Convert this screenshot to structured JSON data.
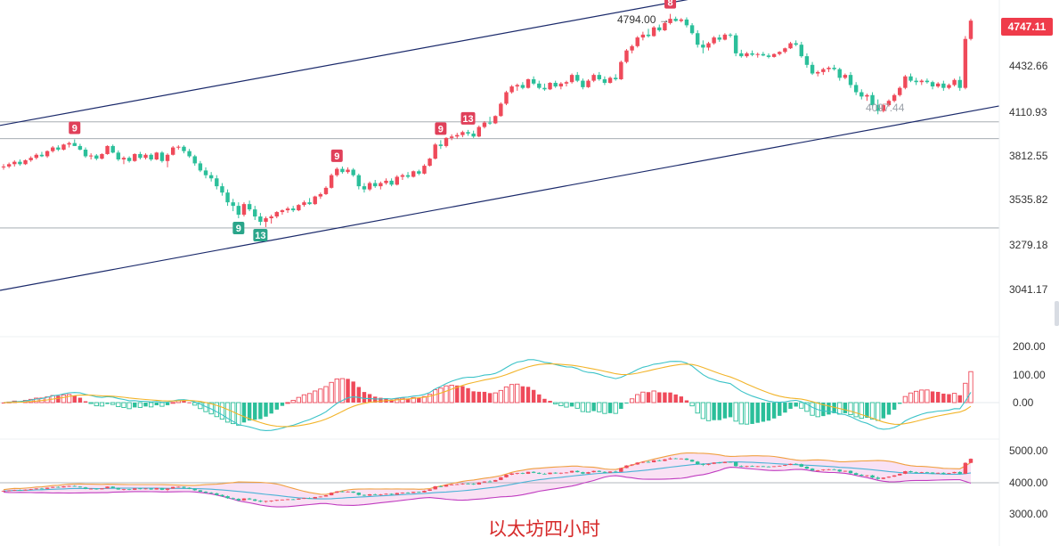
{
  "caption": "以太坊四小时",
  "current_price": "4747.11",
  "colors": {
    "up": "#ef4a5a",
    "down": "#2bbf9a",
    "channel": "#1b2a6b",
    "dif": "#3cc3c8",
    "dea": "#f2b42a",
    "ma_upper": "#f0a040",
    "ma_mid": "#4ab3d6",
    "ma_lower": "#c03cc0",
    "band_fill": "#f6d4f0"
  },
  "chart_data": [
    {
      "type": "candlestick",
      "title": "",
      "y_ticks": [
        "4432.66",
        "4110.93",
        "3812.55",
        "3535.82",
        "3279.18",
        "3041.17"
      ],
      "ylim": [
        2900,
        4900
      ],
      "annotations": {
        "high_label": "4794.00",
        "low_label": "4097.44",
        "td_markers": [
          {
            "text": "9",
            "bar": 13,
            "kind": "up"
          },
          {
            "text": "9",
            "bar": 43,
            "kind": "down"
          },
          {
            "text": "13",
            "bar": 47,
            "kind": "down"
          },
          {
            "text": "9",
            "bar": 61,
            "kind": "up"
          },
          {
            "text": "9",
            "bar": 80,
            "kind": "up"
          },
          {
            "text": "13",
            "bar": 85,
            "kind": "up"
          },
          {
            "text": "8",
            "bar": 122,
            "kind": "up"
          }
        ]
      },
      "horizontal_levels": [
        4045,
        3930,
        3375
      ],
      "channel": {
        "upper": [
          [
            0,
            4025
          ],
          [
            131,
            4934
          ]
        ],
        "lower": [
          [
            0,
            3040
          ],
          [
            187,
            4188
          ]
        ]
      },
      "ohlc": [
        [
          3740,
          3760,
          3725,
          3745
        ],
        [
          3745,
          3770,
          3735,
          3760
        ],
        [
          3760,
          3785,
          3745,
          3775
        ],
        [
          3775,
          3790,
          3750,
          3760
        ],
        [
          3760,
          3790,
          3755,
          3785
        ],
        [
          3785,
          3810,
          3775,
          3800
        ],
        [
          3800,
          3830,
          3790,
          3820
        ],
        [
          3820,
          3840,
          3805,
          3810
        ],
        [
          3810,
          3850,
          3800,
          3845
        ],
        [
          3845,
          3880,
          3835,
          3870
        ],
        [
          3870,
          3885,
          3845,
          3855
        ],
        [
          3855,
          3895,
          3850,
          3890
        ],
        [
          3890,
          3910,
          3870,
          3900
        ],
        [
          3900,
          3925,
          3880,
          3880
        ],
        [
          3880,
          3895,
          3850,
          3855
        ],
        [
          3855,
          3870,
          3800,
          3810
        ],
        [
          3810,
          3830,
          3790,
          3815
        ],
        [
          3815,
          3825,
          3785,
          3795
        ],
        [
          3795,
          3830,
          3790,
          3825
        ],
        [
          3825,
          3885,
          3820,
          3880
        ],
        [
          3880,
          3890,
          3830,
          3835
        ],
        [
          3835,
          3850,
          3780,
          3790
        ],
        [
          3790,
          3810,
          3760,
          3800
        ],
        [
          3800,
          3810,
          3770,
          3780
        ],
        [
          3780,
          3830,
          3775,
          3825
        ],
        [
          3825,
          3840,
          3790,
          3800
        ],
        [
          3800,
          3830,
          3790,
          3820
        ],
        [
          3820,
          3830,
          3780,
          3790
        ],
        [
          3790,
          3840,
          3785,
          3835
        ],
        [
          3835,
          3845,
          3770,
          3780
        ],
        [
          3780,
          3830,
          3740,
          3820
        ],
        [
          3820,
          3880,
          3815,
          3870
        ],
        [
          3870,
          3885,
          3855,
          3875
        ],
        [
          3875,
          3885,
          3830,
          3845
        ],
        [
          3845,
          3860,
          3800,
          3810
        ],
        [
          3810,
          3820,
          3750,
          3765
        ],
        [
          3765,
          3780,
          3710,
          3720
        ],
        [
          3720,
          3740,
          3670,
          3690
        ],
        [
          3690,
          3710,
          3650,
          3670
        ],
        [
          3670,
          3690,
          3600,
          3620
        ],
        [
          3620,
          3640,
          3560,
          3580
        ],
        [
          3580,
          3600,
          3500,
          3520
        ],
        [
          3520,
          3540,
          3470,
          3500
        ],
        [
          3500,
          3520,
          3430,
          3450
        ],
        [
          3450,
          3520,
          3440,
          3510
        ],
        [
          3510,
          3530,
          3470,
          3480
        ],
        [
          3480,
          3500,
          3420,
          3440
        ],
        [
          3440,
          3460,
          3390,
          3410
        ],
        [
          3410,
          3440,
          3380,
          3430
        ],
        [
          3430,
          3450,
          3400,
          3440
        ],
        [
          3440,
          3470,
          3430,
          3465
        ],
        [
          3465,
          3480,
          3450,
          3475
        ],
        [
          3475,
          3495,
          3460,
          3485
        ],
        [
          3485,
          3500,
          3465,
          3475
        ],
        [
          3475,
          3510,
          3470,
          3505
        ],
        [
          3505,
          3530,
          3495,
          3520
        ],
        [
          3520,
          3545,
          3505,
          3510
        ],
        [
          3510,
          3560,
          3505,
          3555
        ],
        [
          3555,
          3580,
          3540,
          3570
        ],
        [
          3570,
          3620,
          3565,
          3610
        ],
        [
          3610,
          3700,
          3605,
          3690
        ],
        [
          3690,
          3740,
          3680,
          3730
        ],
        [
          3730,
          3745,
          3700,
          3710
        ],
        [
          3710,
          3740,
          3700,
          3725
        ],
        [
          3725,
          3735,
          3680,
          3690
        ],
        [
          3690,
          3700,
          3600,
          3620
        ],
        [
          3620,
          3640,
          3580,
          3600
        ],
        [
          3600,
          3650,
          3590,
          3640
        ],
        [
          3640,
          3660,
          3610,
          3620
        ],
        [
          3620,
          3650,
          3600,
          3640
        ],
        [
          3640,
          3670,
          3630,
          3655
        ],
        [
          3655,
          3670,
          3620,
          3630
        ],
        [
          3630,
          3690,
          3625,
          3680
        ],
        [
          3680,
          3700,
          3660,
          3690
        ],
        [
          3690,
          3710,
          3670,
          3680
        ],
        [
          3680,
          3720,
          3675,
          3715
        ],
        [
          3715,
          3725,
          3690,
          3700
        ],
        [
          3700,
          3760,
          3695,
          3750
        ],
        [
          3750,
          3800,
          3745,
          3795
        ],
        [
          3795,
          3900,
          3790,
          3890
        ],
        [
          3890,
          3920,
          3860,
          3880
        ],
        [
          3880,
          3940,
          3870,
          3935
        ],
        [
          3935,
          3960,
          3920,
          3945
        ],
        [
          3945,
          3970,
          3930,
          3955
        ],
        [
          3955,
          3985,
          3940,
          3975
        ],
        [
          3975,
          3990,
          3950,
          3965
        ],
        [
          3965,
          3985,
          3935,
          3945
        ],
        [
          3945,
          4020,
          3940,
          4010
        ],
        [
          4010,
          4050,
          4000,
          4040
        ],
        [
          4040,
          4080,
          4025,
          4035
        ],
        [
          4035,
          4090,
          4030,
          4085
        ],
        [
          4085,
          4180,
          4080,
          4170
        ],
        [
          4170,
          4260,
          4160,
          4250
        ],
        [
          4250,
          4300,
          4240,
          4290
        ],
        [
          4290,
          4310,
          4260,
          4300
        ],
        [
          4300,
          4320,
          4270,
          4280
        ],
        [
          4280,
          4345,
          4275,
          4340
        ],
        [
          4340,
          4360,
          4300,
          4310
        ],
        [
          4310,
          4330,
          4270,
          4280
        ],
        [
          4280,
          4310,
          4260,
          4270
        ],
        [
          4270,
          4320,
          4265,
          4315
        ],
        [
          4315,
          4330,
          4280,
          4290
        ],
        [
          4290,
          4320,
          4270,
          4310
        ],
        [
          4310,
          4330,
          4290,
          4320
        ],
        [
          4320,
          4380,
          4310,
          4370
        ],
        [
          4370,
          4390,
          4320,
          4330
        ],
        [
          4330,
          4345,
          4270,
          4285
        ],
        [
          4285,
          4340,
          4280,
          4330
        ],
        [
          4330,
          4380,
          4320,
          4370
        ],
        [
          4370,
          4390,
          4330,
          4340
        ],
        [
          4340,
          4360,
          4300,
          4315
        ],
        [
          4315,
          4360,
          4310,
          4350
        ],
        [
          4350,
          4375,
          4330,
          4340
        ],
        [
          4340,
          4470,
          4335,
          4460
        ],
        [
          4460,
          4550,
          4450,
          4540
        ],
        [
          4540,
          4580,
          4520,
          4570
        ],
        [
          4570,
          4640,
          4560,
          4630
        ],
        [
          4630,
          4670,
          4610,
          4650
        ],
        [
          4650,
          4690,
          4630,
          4640
        ],
        [
          4640,
          4710,
          4635,
          4700
        ],
        [
          4700,
          4720,
          4670,
          4680
        ],
        [
          4680,
          4740,
          4675,
          4730
        ],
        [
          4730,
          4794,
          4720,
          4760
        ],
        [
          4760,
          4775,
          4740,
          4745
        ],
        [
          4745,
          4765,
          4735,
          4755
        ],
        [
          4755,
          4770,
          4700,
          4715
        ],
        [
          4715,
          4730,
          4650,
          4660
        ],
        [
          4660,
          4680,
          4560,
          4580
        ],
        [
          4580,
          4610,
          4520,
          4560
        ],
        [
          4560,
          4600,
          4540,
          4590
        ],
        [
          4590,
          4640,
          4580,
          4630
        ],
        [
          4630,
          4650,
          4600,
          4615
        ],
        [
          4615,
          4660,
          4610,
          4650
        ],
        [
          4650,
          4660,
          4630,
          4645
        ],
        [
          4645,
          4660,
          4500,
          4520
        ],
        [
          4520,
          4545,
          4490,
          4500
        ],
        [
          4500,
          4530,
          4490,
          4520
        ],
        [
          4520,
          4540,
          4500,
          4510
        ],
        [
          4510,
          4525,
          4490,
          4515
        ],
        [
          4515,
          4530,
          4500,
          4505
        ],
        [
          4505,
          4520,
          4485,
          4495
        ],
        [
          4495,
          4520,
          4490,
          4515
        ],
        [
          4515,
          4535,
          4505,
          4530
        ],
        [
          4530,
          4560,
          4520,
          4555
        ],
        [
          4555,
          4600,
          4550,
          4590
        ],
        [
          4590,
          4610,
          4570,
          4580
        ],
        [
          4580,
          4600,
          4490,
          4500
        ],
        [
          4500,
          4520,
          4420,
          4440
        ],
        [
          4440,
          4460,
          4370,
          4380
        ],
        [
          4380,
          4400,
          4360,
          4390
        ],
        [
          4390,
          4420,
          4370,
          4410
        ],
        [
          4410,
          4430,
          4390,
          4420
        ],
        [
          4420,
          4440,
          4400,
          4410
        ],
        [
          4410,
          4420,
          4330,
          4350
        ],
        [
          4350,
          4380,
          4340,
          4370
        ],
        [
          4370,
          4390,
          4280,
          4300
        ],
        [
          4300,
          4320,
          4230,
          4250
        ],
        [
          4250,
          4270,
          4200,
          4220
        ],
        [
          4220,
          4240,
          4190,
          4230
        ],
        [
          4230,
          4250,
          4140,
          4160
        ],
        [
          4160,
          4200,
          4097,
          4120
        ],
        [
          4120,
          4170,
          4110,
          4160
        ],
        [
          4160,
          4200,
          4150,
          4190
        ],
        [
          4190,
          4240,
          4180,
          4230
        ],
        [
          4230,
          4290,
          4220,
          4280
        ],
        [
          4280,
          4370,
          4270,
          4360
        ],
        [
          4360,
          4380,
          4320,
          4330
        ],
        [
          4330,
          4350,
          4300,
          4320
        ],
        [
          4320,
          4340,
          4300,
          4330
        ],
        [
          4330,
          4345,
          4310,
          4320
        ],
        [
          4320,
          4330,
          4270,
          4290
        ],
        [
          4290,
          4320,
          4280,
          4310
        ],
        [
          4310,
          4330,
          4260,
          4280
        ],
        [
          4280,
          4310,
          4270,
          4300
        ],
        [
          4300,
          4345,
          4290,
          4335
        ],
        [
          4335,
          4360,
          4260,
          4280
        ],
        [
          4280,
          4640,
          4270,
          4620
        ],
        [
          4620,
          4760,
          4610,
          4747
        ]
      ]
    },
    {
      "type": "macd",
      "y_ticks": [
        "200.00",
        "100.00",
        "0.00"
      ],
      "ylim": [
        -120,
        230
      ]
    },
    {
      "type": "bollinger",
      "y_ticks": [
        "5000.00",
        "4000.00",
        "3000.00"
      ],
      "ylim": [
        2900,
        5200
      ],
      "reference_level": 4000
    }
  ]
}
